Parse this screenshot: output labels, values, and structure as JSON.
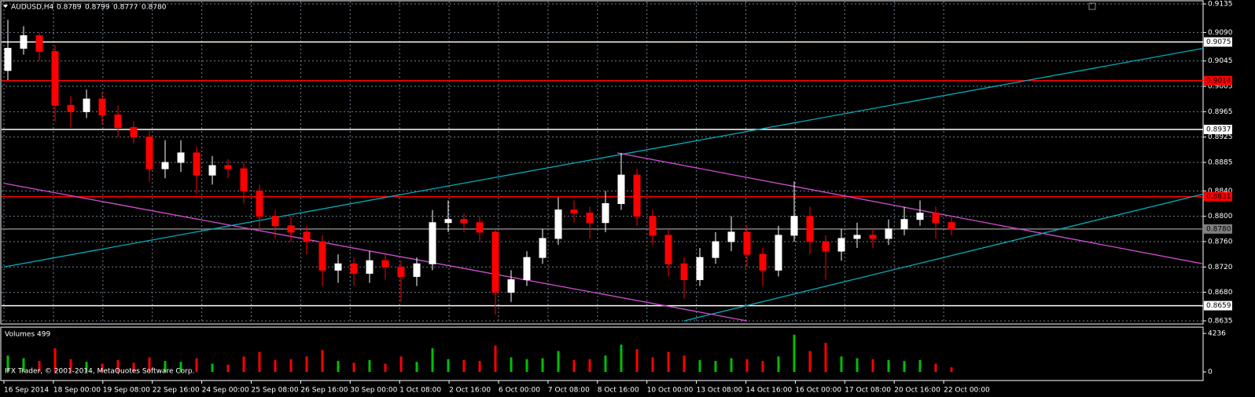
{
  "chart_data": {
    "type": "candlestick",
    "header": {
      "symbol": "AUDUSD,H4",
      "quote": [
        "0.8789",
        "0.8799",
        "0.8777",
        "0.8780"
      ]
    },
    "up_color": "#ffffff",
    "down_color": "#ff0000",
    "background": "#000000",
    "grid": true,
    "ylim": [
      0.863,
      0.914
    ],
    "yticks": [
      {
        "value": 0.9135,
        "label": "0.9135"
      },
      {
        "value": 0.909,
        "label": "0.9090"
      },
      {
        "value": 0.9045,
        "label": "0.9045"
      },
      {
        "value": 0.9005,
        "label": "0.9005"
      },
      {
        "value": 0.8965,
        "label": "0.8965"
      },
      {
        "value": 0.8925,
        "label": "0.8925"
      },
      {
        "value": 0.8885,
        "label": "0.8885"
      },
      {
        "value": 0.884,
        "label": "0.8840"
      },
      {
        "value": 0.88,
        "label": "0.8800"
      },
      {
        "value": 0.876,
        "label": "0.8760"
      },
      {
        "value": 0.872,
        "label": "0.8720"
      },
      {
        "value": 0.868,
        "label": "0.8680"
      },
      {
        "value": 0.8635,
        "label": "0.8635"
      }
    ],
    "x_labels": [
      "16 Sep 2014",
      "18 Sep 00:00",
      "19 Sep 08:00",
      "22 Sep 16:00",
      "24 Sep 00:00",
      "25 Sep 08:00",
      "26 Sep 16:00",
      "30 Sep 00:00",
      "1 Oct 08:00",
      "2 Oct 16:00",
      "6 Oct 00:00",
      "7 Oct 08:00",
      "8 Oct 16:00",
      "10 Oct 00:00",
      "13 Oct 08:00",
      "14 Oct 16:00",
      "16 Oct 00:00",
      "17 Oct 08:00",
      "20 Oct 16:00",
      "22 Oct 00:00"
    ],
    "open": [
      0.903,
      0.9065,
      0.9085,
      0.906,
      0.8975,
      0.8965,
      0.8985,
      0.896,
      0.894,
      0.8925,
      0.8875,
      0.8885,
      0.89,
      0.8865,
      0.888,
      0.8875,
      0.884,
      0.88,
      0.8785,
      0.8775,
      0.876,
      0.8715,
      0.8725,
      0.871,
      0.873,
      0.872,
      0.8705,
      0.8725,
      0.879,
      0.8795,
      0.879,
      0.8775,
      0.868,
      0.87,
      0.8735,
      0.8765,
      0.881,
      0.8805,
      0.879,
      0.882,
      0.8865,
      0.88,
      0.877,
      0.8725,
      0.87,
      0.8735,
      0.876,
      0.8775,
      0.874,
      0.8715,
      0.877,
      0.88,
      0.876,
      0.8745,
      0.8765,
      0.877,
      0.8765,
      0.878,
      0.8795,
      0.8805,
      0.879
    ],
    "high": [
      0.911,
      0.91,
      0.909,
      0.907,
      0.899,
      0.9,
      0.8995,
      0.8975,
      0.895,
      0.8935,
      0.892,
      0.892,
      0.891,
      0.8895,
      0.889,
      0.8885,
      0.885,
      0.881,
      0.88,
      0.8785,
      0.877,
      0.874,
      0.8735,
      0.8745,
      0.874,
      0.873,
      0.8735,
      0.881,
      0.8825,
      0.8805,
      0.88,
      0.878,
      0.8715,
      0.8745,
      0.878,
      0.883,
      0.8825,
      0.8815,
      0.884,
      0.89,
      0.8875,
      0.881,
      0.878,
      0.8735,
      0.875,
      0.8775,
      0.88,
      0.8785,
      0.875,
      0.8785,
      0.8855,
      0.8815,
      0.877,
      0.878,
      0.879,
      0.878,
      0.8795,
      0.8815,
      0.8825,
      0.8815,
      0.88
    ],
    "low": [
      0.9015,
      0.9055,
      0.9045,
      0.895,
      0.894,
      0.8955,
      0.8945,
      0.8925,
      0.8915,
      0.8855,
      0.886,
      0.887,
      0.8835,
      0.885,
      0.886,
      0.882,
      0.878,
      0.8765,
      0.876,
      0.874,
      0.869,
      0.8695,
      0.869,
      0.8695,
      0.87,
      0.8665,
      0.869,
      0.8715,
      0.8775,
      0.8775,
      0.876,
      0.8645,
      0.8665,
      0.869,
      0.8725,
      0.8755,
      0.879,
      0.8765,
      0.8775,
      0.881,
      0.8785,
      0.8755,
      0.8705,
      0.867,
      0.869,
      0.8725,
      0.8745,
      0.872,
      0.869,
      0.8705,
      0.876,
      0.874,
      0.87,
      0.873,
      0.875,
      0.875,
      0.8755,
      0.877,
      0.8785,
      0.8765,
      0.877
    ],
    "close": [
      0.9065,
      0.9085,
      0.906,
      0.8975,
      0.8965,
      0.8985,
      0.896,
      0.894,
      0.8925,
      0.8875,
      0.8885,
      0.89,
      0.8865,
      0.888,
      0.8875,
      0.884,
      0.88,
      0.8785,
      0.8775,
      0.876,
      0.8715,
      0.8725,
      0.871,
      0.873,
      0.872,
      0.8705,
      0.8725,
      0.879,
      0.8795,
      0.879,
      0.8775,
      0.868,
      0.87,
      0.8735,
      0.8765,
      0.881,
      0.8805,
      0.879,
      0.882,
      0.8865,
      0.88,
      0.877,
      0.8725,
      0.87,
      0.8735,
      0.876,
      0.8775,
      0.874,
      0.8715,
      0.877,
      0.88,
      0.876,
      0.8745,
      0.8765,
      0.877,
      0.8765,
      0.878,
      0.8795,
      0.8805,
      0.879,
      0.878
    ],
    "hlines": [
      {
        "value": 0.9075,
        "label": "0.9075",
        "color": "#ffffff"
      },
      {
        "value": 0.9014,
        "label": "0.9014",
        "color": "#ff0000"
      },
      {
        "value": 0.8937,
        "label": "0.8937",
        "color": "#ffffff"
      },
      {
        "value": 0.8831,
        "label": "0.8831",
        "color": "#ff0000"
      },
      {
        "value": 0.878,
        "label": "0.8780",
        "color": "#808080"
      },
      {
        "value": 0.8659,
        "label": "0.8659",
        "color": "#ffffff"
      }
    ],
    "trendlines": [
      {
        "color": "#00aebd",
        "x": [
          -0.25,
          76
        ],
        "y": [
          0.872,
          0.9065
        ]
      },
      {
        "color": "#00aebd",
        "x": [
          43,
          76
        ],
        "y": [
          0.8635,
          0.8835
        ]
      },
      {
        "color": "#d24fd2",
        "x": [
          -0.25,
          47
        ],
        "y": [
          0.8852,
          0.8635
        ]
      },
      {
        "color": "#d24fd2",
        "x": [
          38.75,
          76
        ],
        "y": [
          0.89,
          0.8725
        ]
      }
    ],
    "volume": {
      "title": "Volumes 499",
      "up_color": "#00c000",
      "down_color": "#ff0000",
      "ylim": [
        0,
        4236
      ],
      "yticks": [
        4236,
        0
      ],
      "values": [
        1800,
        1500,
        1200,
        2600,
        1400,
        1100,
        900,
        1300,
        1000,
        1600,
        1200,
        1100,
        1500,
        900,
        800,
        1700,
        2200,
        1300,
        1400,
        1700,
        2400,
        1200,
        1000,
        1300,
        900,
        1700,
        1100,
        2600,
        1400,
        1300,
        1200,
        2900,
        1600,
        1400,
        1500,
        2300,
        1300,
        1400,
        1800,
        3000,
        2500,
        1600,
        2200,
        1800,
        1300,
        1200,
        1500,
        1400,
        1200,
        1700,
        4100,
        2300,
        3200,
        1700,
        1500,
        1400,
        1300,
        1200,
        1300,
        900,
        500
      ]
    },
    "copyright": "IFX Trader, © 2001-2014, MetaQuotes Software Corp."
  }
}
